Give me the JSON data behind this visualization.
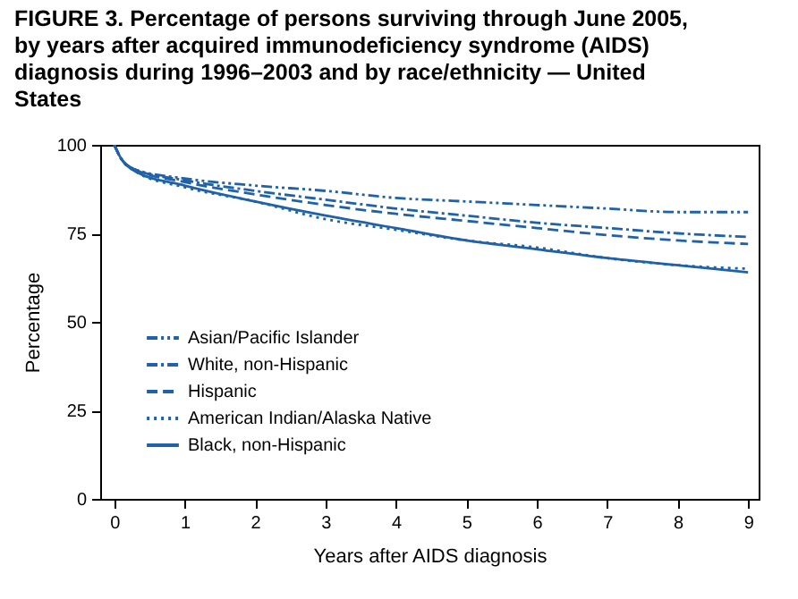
{
  "chart_data": {
    "type": "line",
    "title": "FIGURE 3. Percentage of persons surviving through June 2005, by years after acquired immunodeficiency syndrome (AIDS) diagnosis during 1996–2003 and by race/ethnicity — United States",
    "xlabel": "Years after AIDS diagnosis",
    "ylabel": "Percentage",
    "x": [
      0,
      0.1,
      0.3,
      1,
      2,
      3,
      4,
      5,
      6,
      7,
      8,
      9
    ],
    "series": [
      {
        "name": "Asian/Pacific Islander",
        "color": "#1f62a8",
        "line_style": "dashdotdot",
        "values": [
          100,
          96,
          93,
          90.5,
          88.5,
          87,
          85,
          84,
          83,
          82,
          81,
          81
        ]
      },
      {
        "name": "White, non-Hispanic",
        "color": "#1f62a8",
        "line_style": "dashdot",
        "values": [
          100,
          96,
          93,
          90,
          87,
          84.5,
          82,
          80,
          78,
          76.5,
          75,
          74
        ]
      },
      {
        "name": "Hispanic",
        "color": "#1f62a8",
        "line_style": "dashed",
        "values": [
          100,
          96,
          93,
          89.5,
          86,
          83,
          80.5,
          78.5,
          76.5,
          74.5,
          73,
          72
        ]
      },
      {
        "name": "American Indian/Alaska Native",
        "color": "#1f62a8",
        "line_style": "dotted",
        "values": [
          100,
          96,
          92.5,
          88,
          84,
          79,
          76,
          73,
          71,
          68,
          66,
          65
        ]
      },
      {
        "name": "Black, non-Hispanic",
        "color": "#1f62a8",
        "line_style": "solid",
        "values": [
          100,
          96,
          92.5,
          88.5,
          84,
          80,
          76.5,
          73,
          70.5,
          68,
          66,
          64
        ]
      }
    ],
    "xlim": [
      -0.2,
      9.15
    ],
    "ylim": [
      0,
      100
    ],
    "xticks": [
      0,
      1,
      2,
      3,
      4,
      5,
      6,
      7,
      8,
      9
    ],
    "yticks": [
      0,
      25,
      50,
      75,
      100
    ],
    "grid": false,
    "legend": "left",
    "marker": "none"
  }
}
